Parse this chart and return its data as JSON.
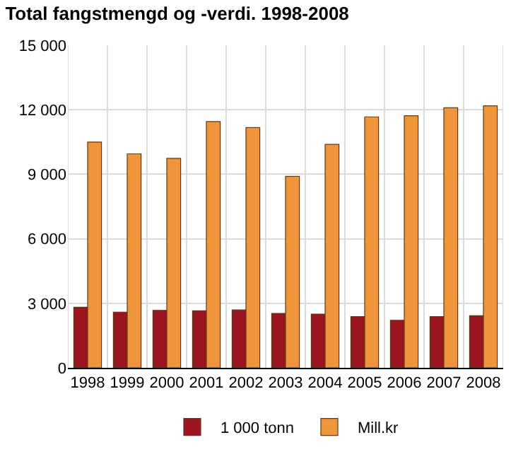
{
  "chart_data": {
    "type": "bar",
    "title": "Total fangstmengd og -verdi. 1998-2008",
    "categories": [
      "1998",
      "1999",
      "2000",
      "2001",
      "2002",
      "2003",
      "2004",
      "2005",
      "2006",
      "2007",
      "2008"
    ],
    "series": [
      {
        "name": "1 000 tonn",
        "color": "#9b1520",
        "values": [
          2820,
          2590,
          2670,
          2650,
          2690,
          2530,
          2500,
          2380,
          2210,
          2380,
          2420
        ]
      },
      {
        "name": "Mill.kr",
        "color": "#f0963a",
        "values": [
          10500,
          9950,
          9740,
          11450,
          11170,
          8900,
          10390,
          11670,
          11720,
          12090,
          12180
        ]
      }
    ],
    "ylim": [
      0,
      15000
    ],
    "yticks": [
      {
        "value": 0,
        "label": "0"
      },
      {
        "value": 3000,
        "label": "3 000"
      },
      {
        "value": 6000,
        "label": "6 000"
      },
      {
        "value": 9000,
        "label": "9 000"
      },
      {
        "value": 12000,
        "label": "12 000"
      },
      {
        "value": 15000,
        "label": "15 000"
      }
    ],
    "grid": true,
    "legend": "bottom"
  }
}
